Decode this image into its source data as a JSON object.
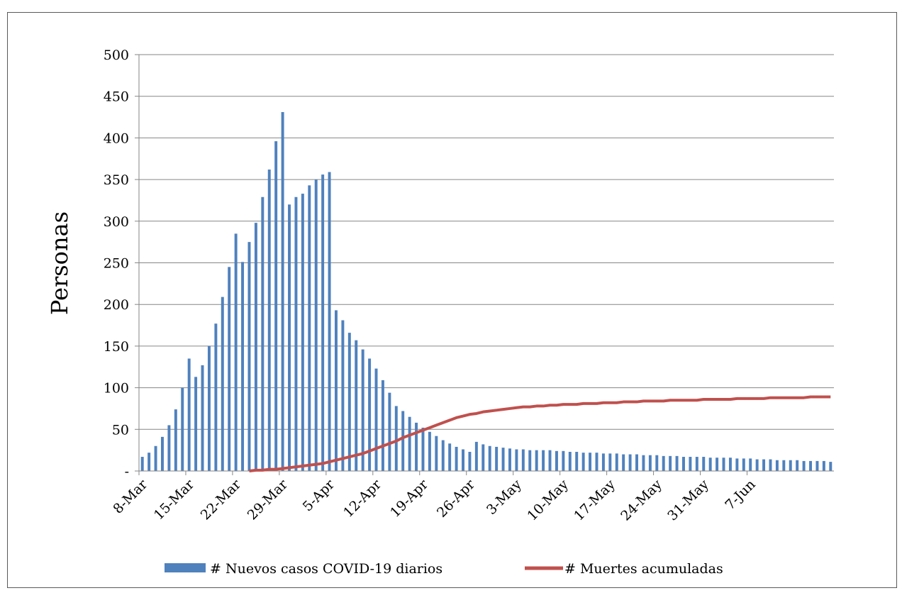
{
  "chart_data": {
    "type": "bar",
    "title": "",
    "xlabel": "",
    "ylabel": "Personas",
    "ylim": [
      0,
      500
    ],
    "yticks": [
      {
        "value": 0,
        "label": "-"
      },
      {
        "value": 50,
        "label": "50"
      },
      {
        "value": 100,
        "label": "100"
      },
      {
        "value": 150,
        "label": "150"
      },
      {
        "value": 200,
        "label": "200"
      },
      {
        "value": 250,
        "label": "250"
      },
      {
        "value": 300,
        "label": "300"
      },
      {
        "value": 350,
        "label": "350"
      },
      {
        "value": 400,
        "label": "400"
      },
      {
        "value": 450,
        "label": "450"
      },
      {
        "value": 500,
        "label": "500"
      }
    ],
    "grid": true,
    "legend_position": "bottom",
    "xtick_labels": [
      "8-Mar",
      "15-Mar",
      "22-Mar",
      "29-Mar",
      "5-Apr",
      "12-Apr",
      "19-Apr",
      "26-Apr",
      "3-May",
      "10-May",
      "17-May",
      "24-May",
      "31-May",
      "7-Jun"
    ],
    "series": [
      {
        "name": "# Nuevos casos COVID-19 diarios",
        "type": "bar",
        "color": "#4f81bd",
        "values": [
          17,
          22,
          30,
          41,
          55,
          74,
          100,
          135,
          113,
          127,
          150,
          177,
          209,
          245,
          285,
          251,
          275,
          298,
          329,
          362,
          396,
          431,
          320,
          329,
          333,
          343,
          350,
          356,
          359,
          193,
          181,
          166,
          157,
          146,
          135,
          123,
          109,
          94,
          78,
          72,
          65,
          58,
          52,
          47,
          42,
          37,
          33,
          29,
          26,
          23,
          35,
          32,
          30,
          29,
          28,
          27,
          26,
          26,
          25,
          25,
          25,
          25,
          24,
          24,
          23,
          23,
          22,
          22,
          22,
          21,
          21,
          21,
          20,
          20,
          20,
          19,
          19,
          19,
          18,
          18,
          18,
          17,
          17,
          17,
          17,
          16,
          16,
          16,
          16,
          15,
          15,
          15,
          14,
          14,
          14,
          13,
          13,
          13,
          13,
          12,
          12,
          12,
          12,
          11
        ]
      },
      {
        "name": "# Muertes acumuladas",
        "type": "line",
        "color": "#c0504d",
        "start_index": 16,
        "values": [
          0,
          1,
          1,
          2,
          2,
          3,
          4,
          5,
          6,
          7,
          8,
          9,
          11,
          13,
          15,
          17,
          19,
          21,
          24,
          27,
          30,
          33,
          36,
          40,
          43,
          46,
          49,
          52,
          55,
          58,
          61,
          64,
          66,
          68,
          69,
          71,
          72,
          73,
          74,
          75,
          76,
          77,
          77,
          78,
          78,
          79,
          79,
          80,
          80,
          80,
          81,
          81,
          81,
          82,
          82,
          82,
          83,
          83,
          83,
          84,
          84,
          84,
          84,
          85,
          85,
          85,
          85,
          85,
          86,
          86,
          86,
          86,
          86,
          87,
          87,
          87,
          87,
          87,
          88,
          88,
          88,
          88,
          88,
          88,
          89,
          89,
          89,
          89
        ]
      }
    ]
  }
}
